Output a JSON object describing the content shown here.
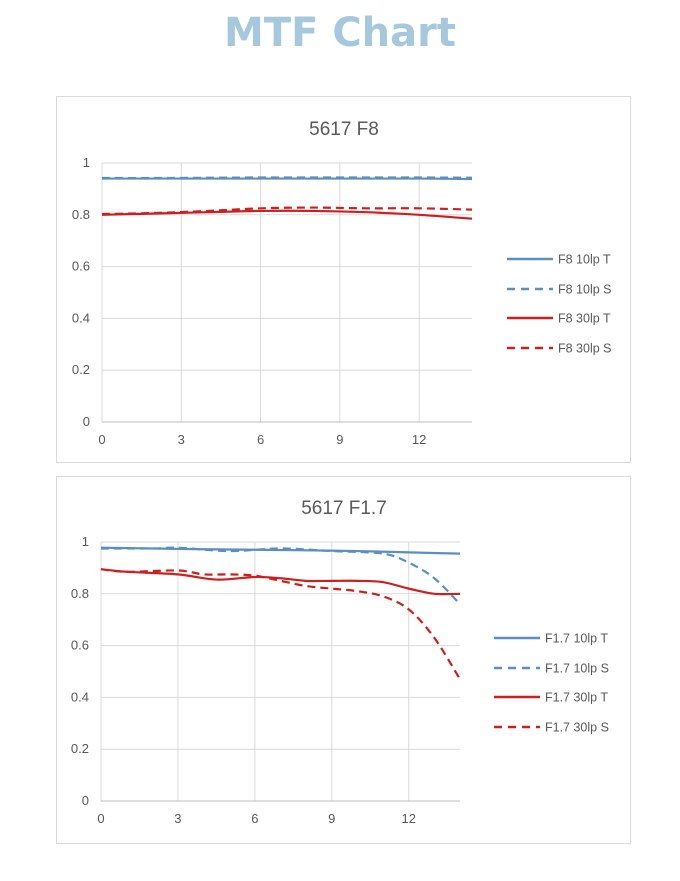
{
  "page": {
    "title": "MTF Chart"
  },
  "colors": {
    "blue": "#5b8fc0",
    "red": "#cc1f1f",
    "grid": "#d9d9d9",
    "title": "#a5c8dd"
  },
  "chart_data": [
    {
      "type": "line",
      "title": "5617   F8",
      "xlim": [
        0,
        14
      ],
      "ylim": [
        0,
        1
      ],
      "x_ticks": [
        0,
        3,
        6,
        9,
        12
      ],
      "y_ticks": [
        0,
        0.2,
        0.4,
        0.6,
        0.8,
        1
      ],
      "y_tick_labels": [
        "0",
        "0.2",
        "0.4",
        "0.6",
        "0.8",
        "1"
      ],
      "grid": true,
      "legend_position": "right",
      "series": [
        {
          "name": "F8 10lp T",
          "color": "#5b8fc0",
          "dash": false,
          "x": [
            0,
            2,
            4,
            6,
            8,
            10,
            12,
            14
          ],
          "y": [
            0.94,
            0.94,
            0.94,
            0.94,
            0.94,
            0.94,
            0.94,
            0.938
          ]
        },
        {
          "name": "F8 10lp S",
          "color": "#5b8fc0",
          "dash": true,
          "x": [
            0,
            2,
            4,
            6,
            8,
            10,
            12,
            14
          ],
          "y": [
            0.942,
            0.942,
            0.943,
            0.944,
            0.944,
            0.944,
            0.944,
            0.943
          ]
        },
        {
          "name": "F8 30lp T",
          "color": "#cc1f1f",
          "dash": false,
          "x": [
            0,
            2,
            4,
            6,
            8,
            10,
            12,
            14
          ],
          "y": [
            0.8,
            0.805,
            0.81,
            0.815,
            0.815,
            0.81,
            0.8,
            0.785
          ]
        },
        {
          "name": "F8 30lp S",
          "color": "#cc1f1f",
          "dash": true,
          "x": [
            0,
            2,
            4,
            6,
            8,
            10,
            12,
            14
          ],
          "y": [
            0.803,
            0.807,
            0.815,
            0.825,
            0.828,
            0.825,
            0.825,
            0.82
          ]
        }
      ]
    },
    {
      "type": "line",
      "title": "5617   F1.7",
      "xlim": [
        0,
        14
      ],
      "ylim": [
        0,
        1
      ],
      "x_ticks": [
        0,
        3,
        6,
        9,
        12
      ],
      "y_ticks": [
        0,
        0.2,
        0.4,
        0.6,
        0.8,
        1
      ],
      "y_tick_labels": [
        "0",
        "0.2",
        "0.4",
        "0.6",
        "0.8",
        "1"
      ],
      "grid": true,
      "legend_position": "right",
      "series": [
        {
          "name": "F1.7 10lp T",
          "color": "#5b8fc0",
          "dash": false,
          "x": [
            0,
            2,
            4,
            6,
            8,
            10,
            12,
            14
          ],
          "y": [
            0.978,
            0.975,
            0.972,
            0.97,
            0.968,
            0.965,
            0.96,
            0.955
          ]
        },
        {
          "name": "F1.7 10lp S",
          "color": "#5b8fc0",
          "dash": true,
          "x": [
            0,
            2,
            3,
            5,
            7,
            9,
            11,
            12,
            13,
            14
          ],
          "y": [
            0.975,
            0.975,
            0.978,
            0.965,
            0.975,
            0.965,
            0.955,
            0.92,
            0.86,
            0.76
          ]
        },
        {
          "name": "F1.7 30lp T",
          "color": "#cc1f1f",
          "dash": false,
          "x": [
            0,
            1,
            3,
            4.5,
            6,
            7,
            8,
            9,
            10,
            11,
            12,
            13,
            14
          ],
          "y": [
            0.895,
            0.885,
            0.875,
            0.855,
            0.865,
            0.86,
            0.85,
            0.85,
            0.85,
            0.845,
            0.82,
            0.8,
            0.8
          ]
        },
        {
          "name": "F1.7 30lp S",
          "color": "#cc1f1f",
          "dash": true,
          "x": [
            0,
            1,
            3,
            4,
            5,
            6,
            7,
            8,
            9,
            10,
            11,
            12,
            13,
            14
          ],
          "y": [
            0.895,
            0.885,
            0.89,
            0.875,
            0.875,
            0.87,
            0.85,
            0.83,
            0.82,
            0.81,
            0.79,
            0.74,
            0.63,
            0.47
          ]
        }
      ]
    }
  ]
}
